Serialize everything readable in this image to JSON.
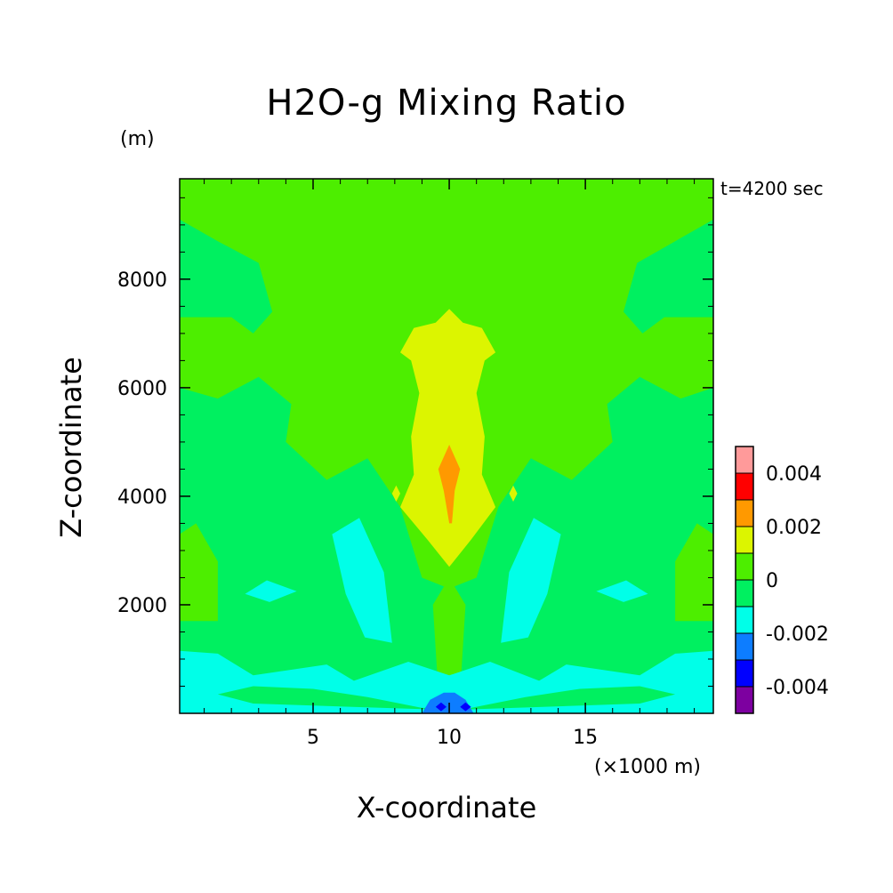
{
  "chart_data": {
    "type": "heatmap",
    "title": "H2O-g Mixing Ratio",
    "xlabel": "X-coordinate",
    "ylabel": "Z-coordinate",
    "x_unit": "(×1000 m)",
    "y_unit": "(m)",
    "time_label": "t=4200 sec",
    "xlim": [
      0.1,
      19.7
    ],
    "ylim": [
      0,
      9850
    ],
    "x_ticks": [
      5,
      10,
      15
    ],
    "y_ticks": [
      2000,
      4000,
      6000,
      8000
    ],
    "x_minor_step": 1,
    "y_minor_step": 500,
    "colorbar": {
      "levels": [
        -0.005,
        -0.004,
        -0.003,
        -0.002,
        -0.001,
        0,
        0.001,
        0.002,
        0.003,
        0.004,
        0.005
      ],
      "colors": [
        "#7d00a0",
        "#0000ff",
        "#0d7dff",
        "#00ffe8",
        "#00f060",
        "#4dee00",
        "#dcf500",
        "#ff9900",
        "#ff0000",
        "#ff9a9a"
      ],
      "labels": [
        {
          "text": "-0.004",
          "value": -0.004
        },
        {
          "text": "-0.002",
          "value": -0.002
        },
        {
          "text": "0",
          "value": 0
        },
        {
          "text": "0.002",
          "value": 0.002
        },
        {
          "text": "0.004",
          "value": 0.004
        }
      ]
    },
    "background_color": "#4dee00",
    "regions": [
      {
        "color": "#00f060",
        "points": [
          [
            0.1,
            6000
          ],
          [
            1.5,
            5800
          ],
          [
            3.0,
            6200
          ],
          [
            4.2,
            5700
          ],
          [
            4.0,
            5000
          ],
          [
            5.5,
            4300
          ],
          [
            7.0,
            4700
          ],
          [
            8.2,
            3800
          ],
          [
            9.0,
            2500
          ],
          [
            10.0,
            2300
          ],
          [
            11.0,
            2500
          ],
          [
            11.8,
            3800
          ],
          [
            13.0,
            4700
          ],
          [
            14.5,
            4300
          ],
          [
            16.0,
            5000
          ],
          [
            15.8,
            5700
          ],
          [
            17.0,
            6200
          ],
          [
            18.5,
            5800
          ],
          [
            19.7,
            6000
          ],
          [
            19.7,
            0
          ],
          [
            0.1,
            0
          ]
        ]
      },
      {
        "color": "#00f060",
        "points": [
          [
            0.1,
            9100
          ],
          [
            1.5,
            8700
          ],
          [
            3.0,
            8300
          ],
          [
            3.5,
            7400
          ],
          [
            2.8,
            7000
          ],
          [
            2.0,
            7300
          ],
          [
            0.1,
            7300
          ]
        ]
      },
      {
        "color": "#00f060",
        "points": [
          [
            19.7,
            9100
          ],
          [
            18.3,
            8700
          ],
          [
            16.9,
            8300
          ],
          [
            16.4,
            7400
          ],
          [
            17.1,
            7000
          ],
          [
            17.9,
            7300
          ],
          [
            19.7,
            7300
          ]
        ]
      },
      {
        "color": "#4dee00",
        "points": [
          [
            0.1,
            1700
          ],
          [
            1.5,
            1700
          ],
          [
            1.5,
            2800
          ],
          [
            0.7,
            3500
          ],
          [
            0.1,
            3300
          ]
        ]
      },
      {
        "color": "#4dee00",
        "points": [
          [
            19.7,
            1700
          ],
          [
            18.3,
            1700
          ],
          [
            18.3,
            2800
          ],
          [
            19.1,
            3500
          ],
          [
            19.7,
            3300
          ]
        ]
      },
      {
        "color": "#4dee00",
        "points": [
          [
            9.6,
            400
          ],
          [
            9.4,
            2000
          ],
          [
            10.0,
            2500
          ],
          [
            10.6,
            2000
          ],
          [
            10.4,
            400
          ],
          [
            10.0,
            700
          ]
        ]
      },
      {
        "color": "#00ffe8",
        "points": [
          [
            5.7,
            3300
          ],
          [
            6.7,
            3600
          ],
          [
            7.6,
            2600
          ],
          [
            7.9,
            1300
          ],
          [
            6.9,
            1400
          ],
          [
            6.2,
            2200
          ]
        ]
      },
      {
        "color": "#00ffe8",
        "points": [
          [
            14.1,
            3300
          ],
          [
            13.1,
            3600
          ],
          [
            12.2,
            2600
          ],
          [
            11.9,
            1300
          ],
          [
            12.9,
            1400
          ],
          [
            13.6,
            2200
          ]
        ]
      },
      {
        "color": "#00ffe8",
        "points": [
          [
            2.5,
            2200
          ],
          [
            3.3,
            2450
          ],
          [
            4.4,
            2250
          ],
          [
            3.4,
            2050
          ]
        ]
      },
      {
        "color": "#00ffe8",
        "points": [
          [
            17.3,
            2200
          ],
          [
            16.5,
            2450
          ],
          [
            15.4,
            2250
          ],
          [
            16.4,
            2050
          ]
        ]
      },
      {
        "color": "#00ffe8",
        "points": [
          [
            0.1,
            0
          ],
          [
            0.1,
            1150
          ],
          [
            1.5,
            1100
          ],
          [
            2.8,
            700
          ],
          [
            5.5,
            900
          ],
          [
            6.5,
            600
          ],
          [
            8.5,
            950
          ],
          [
            10.0,
            700
          ],
          [
            11.5,
            950
          ],
          [
            13.3,
            600
          ],
          [
            14.3,
            900
          ],
          [
            17.0,
            700
          ],
          [
            18.3,
            1100
          ],
          [
            19.7,
            1150
          ],
          [
            19.7,
            0
          ]
        ]
      },
      {
        "color": "#00f060",
        "points": [
          [
            1.5,
            350
          ],
          [
            2.8,
            500
          ],
          [
            5.0,
            450
          ],
          [
            7.0,
            300
          ],
          [
            9.0,
            100
          ],
          [
            10.8,
            100
          ],
          [
            12.8,
            300
          ],
          [
            14.8,
            450
          ],
          [
            17.0,
            500
          ],
          [
            18.3,
            350
          ],
          [
            17.0,
            180
          ],
          [
            10.0,
            60
          ],
          [
            2.8,
            180
          ]
        ]
      },
      {
        "color": "#0d7dff",
        "points": [
          [
            9.0,
            0
          ],
          [
            9.3,
            250
          ],
          [
            9.8,
            380
          ],
          [
            10.2,
            380
          ],
          [
            10.6,
            250
          ],
          [
            10.9,
            0
          ]
        ]
      },
      {
        "color": "#0000ff",
        "points": [
          [
            9.5,
            120
          ],
          [
            9.7,
            200
          ],
          [
            9.9,
            120
          ],
          [
            9.7,
            40
          ]
        ]
      },
      {
        "color": "#0000ff",
        "points": [
          [
            10.4,
            120
          ],
          [
            10.6,
            200
          ],
          [
            10.8,
            120
          ],
          [
            10.6,
            40
          ]
        ]
      },
      {
        "color": "#dcf500",
        "points": [
          [
            10.0,
            7450
          ],
          [
            10.5,
            7200
          ],
          [
            11.2,
            7100
          ],
          [
            11.7,
            6650
          ],
          [
            11.3,
            6500
          ],
          [
            11.0,
            5900
          ],
          [
            11.3,
            5100
          ],
          [
            11.2,
            4400
          ],
          [
            11.7,
            3800
          ],
          [
            10.8,
            3200
          ],
          [
            10.0,
            2700
          ],
          [
            9.2,
            3200
          ],
          [
            8.2,
            3800
          ],
          [
            8.7,
            4400
          ],
          [
            8.6,
            5100
          ],
          [
            8.9,
            5900
          ],
          [
            8.6,
            6500
          ],
          [
            8.2,
            6650
          ],
          [
            8.7,
            7100
          ],
          [
            9.5,
            7200
          ]
        ]
      },
      {
        "color": "#ff9900",
        "points": [
          [
            10.0,
            4950
          ],
          [
            10.4,
            4500
          ],
          [
            10.2,
            4100
          ],
          [
            10.1,
            3500
          ],
          [
            10.0,
            3500
          ],
          [
            9.8,
            4100
          ],
          [
            9.6,
            4500
          ]
        ]
      },
      {
        "color": "#dcf500",
        "points": [
          [
            7.9,
            4050
          ],
          [
            8.05,
            4200
          ],
          [
            8.2,
            4050
          ],
          [
            8.05,
            3900
          ]
        ]
      },
      {
        "color": "#dcf500",
        "points": [
          [
            12.2,
            4050
          ],
          [
            12.35,
            4200
          ],
          [
            12.5,
            4050
          ],
          [
            12.35,
            3900
          ]
        ]
      }
    ]
  }
}
